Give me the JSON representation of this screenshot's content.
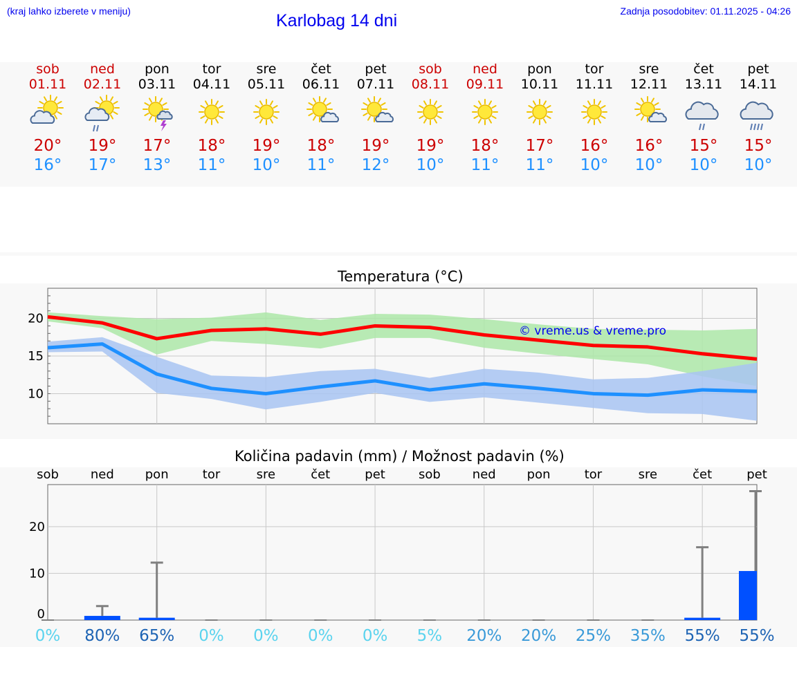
{
  "header": {
    "left_note": "(kraj lahko izberete v meniju)",
    "title": "Karlobag 14 dni",
    "updated": "Zadnja posodobitev: 01.11.2025 - 04:26"
  },
  "colors": {
    "weekend": "#cc0000",
    "weekday": "#000000",
    "tmax": "#cc0000",
    "tmin": "#1e90ff",
    "link": "#0000ee"
  },
  "days": [
    {
      "name": "sob",
      "date": "01.11",
      "weekend": true,
      "icon": "sun-cloud-icon",
      "tmax": "20°",
      "tmin": "16°"
    },
    {
      "name": "ned",
      "date": "02.11",
      "weekend": true,
      "icon": "sun-cloud-rain-icon",
      "tmax": "19°",
      "tmin": "17°"
    },
    {
      "name": "pon",
      "date": "03.11",
      "weekend": false,
      "icon": "sun-storm-icon",
      "tmax": "17°",
      "tmin": "13°"
    },
    {
      "name": "tor",
      "date": "04.11",
      "weekend": false,
      "icon": "sun-icon",
      "tmax": "18°",
      "tmin": "11°"
    },
    {
      "name": "sre",
      "date": "05.11",
      "weekend": false,
      "icon": "sun-icon",
      "tmax": "19°",
      "tmin": "10°"
    },
    {
      "name": "čet",
      "date": "06.11",
      "weekend": false,
      "icon": "sun-small-cloud-icon",
      "tmax": "18°",
      "tmin": "11°"
    },
    {
      "name": "pet",
      "date": "07.11",
      "weekend": false,
      "icon": "sun-small-cloud-icon",
      "tmax": "19°",
      "tmin": "12°"
    },
    {
      "name": "sob",
      "date": "08.11",
      "weekend": true,
      "icon": "sun-icon",
      "tmax": "19°",
      "tmin": "10°"
    },
    {
      "name": "ned",
      "date": "09.11",
      "weekend": true,
      "icon": "sun-icon",
      "tmax": "18°",
      "tmin": "11°"
    },
    {
      "name": "pon",
      "date": "10.11",
      "weekend": false,
      "icon": "sun-icon",
      "tmax": "17°",
      "tmin": "11°"
    },
    {
      "name": "tor",
      "date": "11.11",
      "weekend": false,
      "icon": "sun-icon",
      "tmax": "16°",
      "tmin": "10°"
    },
    {
      "name": "sre",
      "date": "12.11",
      "weekend": false,
      "icon": "sun-small-cloud-icon",
      "tmax": "16°",
      "tmin": "10°"
    },
    {
      "name": "čet",
      "date": "13.11",
      "weekend": false,
      "icon": "cloud-rain-icon",
      "tmax": "15°",
      "tmin": "10°"
    },
    {
      "name": "pet",
      "date": "14.11",
      "weekend": false,
      "icon": "cloud-heavy-rain-icon",
      "tmax": "15°",
      "tmin": "10°"
    }
  ],
  "chart_data": [
    {
      "type": "line",
      "title": "Temperatura (°C)",
      "watermark": "© vreme.us & vreme.pro",
      "ylim": [
        6,
        24
      ],
      "yticks": [
        10,
        15,
        20
      ],
      "xlim": [
        0,
        13
      ],
      "series": [
        {
          "name": "max",
          "color": "#ff0000",
          "values": [
            20.2,
            19.4,
            17.3,
            18.4,
            18.6,
            17.9,
            19.0,
            18.8,
            17.8,
            17.1,
            16.4,
            16.2,
            15.3,
            14.6
          ],
          "band_low": [
            19.6,
            18.7,
            15.2,
            17.0,
            16.6,
            16.0,
            17.4,
            17.4,
            16.1,
            15.3,
            14.6,
            13.9,
            12.3,
            11.0
          ],
          "band_high": [
            20.8,
            20.3,
            19.9,
            20.1,
            20.8,
            19.8,
            20.6,
            20.5,
            19.9,
            19.2,
            18.6,
            18.5,
            18.4,
            18.6
          ],
          "band_color": "#ade7a8"
        },
        {
          "name": "min",
          "color": "#1e90ff",
          "values": [
            16.1,
            16.6,
            12.6,
            10.7,
            10.0,
            10.9,
            11.7,
            10.5,
            11.3,
            10.7,
            10.0,
            9.8,
            10.5,
            10.3
          ],
          "band_low": [
            15.5,
            15.6,
            10.1,
            9.3,
            7.9,
            8.9,
            10.1,
            8.9,
            9.5,
            8.8,
            8.1,
            7.4,
            7.3,
            6.4
          ],
          "band_high": [
            16.9,
            17.5,
            14.9,
            12.4,
            12.2,
            13.0,
            13.3,
            12.1,
            13.3,
            12.8,
            11.9,
            12.1,
            13.0,
            14.1
          ],
          "band_color": "#a8c4f2"
        }
      ]
    },
    {
      "type": "bar",
      "title": "Količina padavin (mm) / Možnost padavin (%)",
      "categories": [
        "sob",
        "ned",
        "pon",
        "tor",
        "sre",
        "čet",
        "pet",
        "sob",
        "ned",
        "pon",
        "tor",
        "sre",
        "čet",
        "pet"
      ],
      "values": [
        0,
        0.9,
        0.5,
        0,
        0,
        0,
        0,
        0,
        0,
        0,
        0,
        0,
        0.5,
        10.5
      ],
      "error_max": [
        0,
        3,
        12.3,
        0,
        0,
        0,
        0,
        0,
        0,
        0,
        0,
        0,
        15.6,
        27.6
      ],
      "probability": [
        "0%",
        "80%",
        "65%",
        "0%",
        "0%",
        "0%",
        "0%",
        "5%",
        "20%",
        "20%",
        "25%",
        "35%",
        "55%",
        "55%"
      ],
      "probability_colors": [
        "#5ad3ee",
        "#1e64b4",
        "#1e64b4",
        "#5ad3ee",
        "#5ad3ee",
        "#5ad3ee",
        "#5ad3ee",
        "#5ad3ee",
        "#3a9ad8",
        "#3a9ad8",
        "#3a9ad8",
        "#3a9ad8",
        "#1e64b4",
        "#1e64b4"
      ],
      "ylim": [
        0,
        29
      ],
      "yticks": [
        0,
        10,
        20
      ],
      "bar_color": "#0050ff"
    }
  ]
}
